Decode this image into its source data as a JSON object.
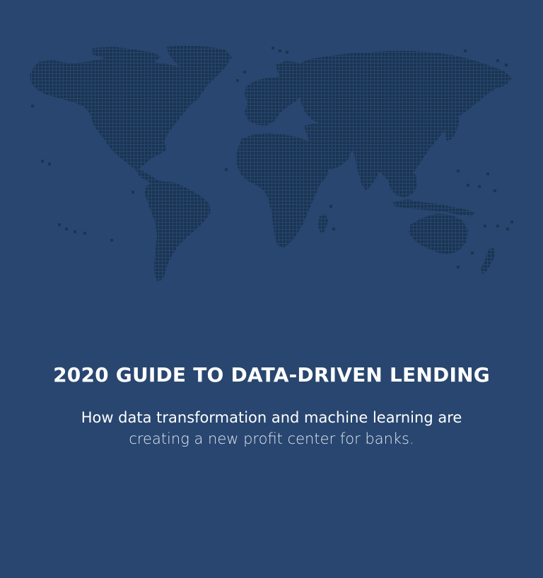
{
  "cover": {
    "title": "2020 GUIDE TO DATA-DRIVEN LENDING",
    "subtitle_line1": "How data transformation and machine learning are",
    "subtitle_line2": "creating a new profit center for banks."
  },
  "colors": {
    "background": "#28466f",
    "map_dots": "#1a3552",
    "text": "#ffffff"
  },
  "map": {
    "icon": "dotted-world-map-icon"
  }
}
